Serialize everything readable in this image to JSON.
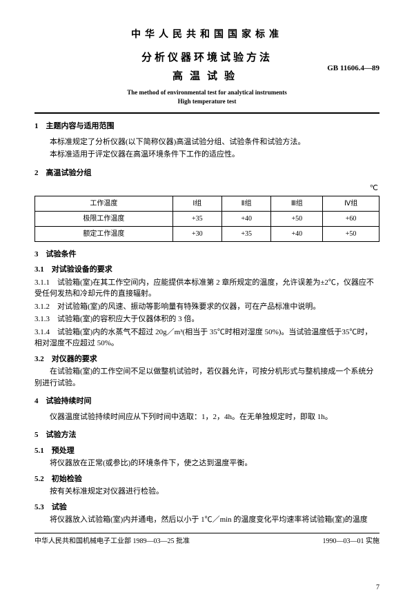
{
  "header": {
    "country": "中华人民共和国国家标准",
    "title_line1": "分析仪器环境试验方法",
    "title_line2": "高温试验",
    "std_code": "GB 11606.4—89",
    "en_line1": "The method of environmental test for analytical instruments",
    "en_line2": "High temperature test"
  },
  "s1": {
    "heading": "1　主题内容与适用范围",
    "p1": "本标准规定了分析仪器(以下简称仪器)高温试验分组、试验条件和试验方法。",
    "p2": "本标准适用于评定仪器在高温环境条件下工作的适应性。"
  },
  "s2": {
    "heading": "2　高温试验分组",
    "unit": "℃",
    "table": {
      "head": [
        "工作温度",
        "Ⅰ组",
        "Ⅱ组",
        "Ⅲ组",
        "Ⅳ组"
      ],
      "rows": [
        [
          "极限工作温度",
          "+35",
          "+40",
          "+50",
          "+60"
        ],
        [
          "额定工作温度",
          "+30",
          "+35",
          "+40",
          "+50"
        ]
      ]
    }
  },
  "s3": {
    "heading": "3　试验条件",
    "h31": "3.1　对试验设备的要求",
    "c311": "3.1.1　试验箱(室)在其工作空间内，应能提供本标准第 2 章所规定的温度，允许误差为±2℃，仪器应不受任何发热和冷却元件的直接辐射。",
    "c312": "3.1.2　对试验箱(室)的风速、振动等影响量有特殊要求的仪器，可在产品标准中说明。",
    "c313": "3.1.3　试验箱(室)的容积应大于仪器体积的 3 倍。",
    "c314": "3.1.4　试验箱(室)内的水蒸气不超过 20g／m³(相当于 35℃时相对湿度 50%)。当试验温度低于35℃时，相对湿度不应超过 50%。",
    "h32": "3.2　对仪器的要求",
    "p32": "在试验箱(室)的工作空间不足以做整机试验时，若仪器允许，可按分机形式与整机接成一个系统分别进行试验。"
  },
  "s4": {
    "heading": "4　试验持续时间",
    "p": "仪器温度试验持续时间应从下列时间中选取：1，2，4h。在无单独规定时，即取 1h。"
  },
  "s5": {
    "heading": "5　试验方法",
    "h51": "5.1　预处理",
    "p51": "将仪器放在正常(或参比)的环境条件下，使之达到温度平衡。",
    "h52": "5.2　初始检验",
    "p52": "按有关标准规定对仪器进行检验。",
    "h53": "5.3　试验",
    "p53": "将仪器放入试验箱(室)内并通电，然后以小于 1℃／min 的温度变化平均速率将试验箱(室)的温度"
  },
  "footer": {
    "left": "中华人民共和国机械电子工业部 1989—03—25 批准",
    "right": "1990—03—01 实施",
    "page": "7"
  }
}
